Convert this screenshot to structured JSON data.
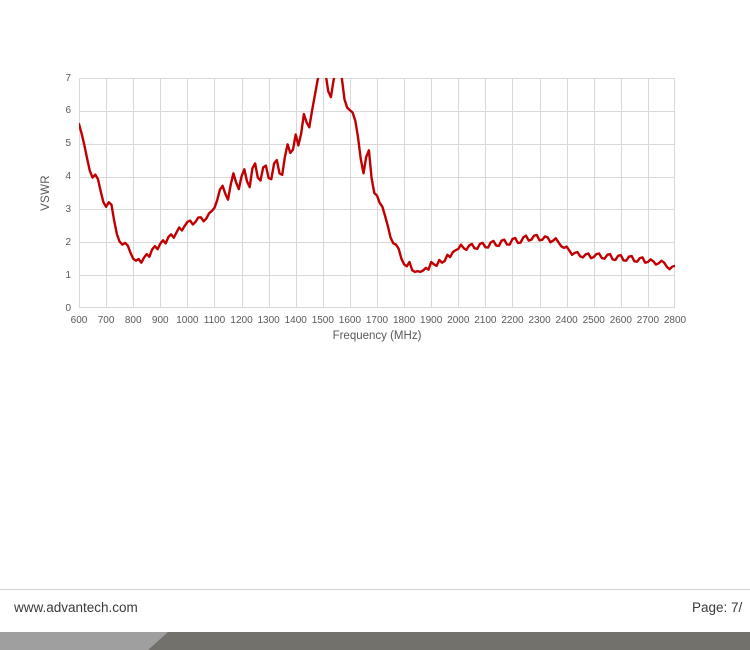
{
  "chart_data": {
    "type": "line",
    "title": "",
    "xlabel": "Frequency (MHz)",
    "ylabel": "VSWR",
    "xlim": [
      600,
      2800
    ],
    "ylim": [
      0,
      7
    ],
    "grid": true,
    "legend": "none",
    "x_ticks": [
      600,
      700,
      800,
      900,
      1000,
      1100,
      1200,
      1300,
      1400,
      1500,
      1600,
      1700,
      1800,
      1900,
      2000,
      2100,
      2200,
      2300,
      2400,
      2500,
      2600,
      2700,
      2800
    ],
    "y_ticks": [
      0,
      1,
      2,
      3,
      4,
      5,
      6,
      7
    ],
    "line_color": "#C00000",
    "grid_color": "#D9D9D9",
    "axis_text_color": "#595959",
    "clip_above_ymax": true,
    "series": [
      {
        "name": "VSWR",
        "x_start": 600,
        "x_step": 10,
        "values": [
          5.6,
          5.3,
          4.95,
          4.55,
          4.18,
          3.97,
          4.06,
          3.92,
          3.55,
          3.22,
          3.08,
          3.22,
          3.14,
          2.65,
          2.25,
          2.02,
          1.93,
          1.98,
          1.9,
          1.68,
          1.5,
          1.44,
          1.49,
          1.38,
          1.53,
          1.64,
          1.56,
          1.78,
          1.88,
          1.79,
          1.96,
          2.06,
          1.97,
          2.16,
          2.24,
          2.14,
          2.3,
          2.45,
          2.36,
          2.5,
          2.62,
          2.66,
          2.54,
          2.62,
          2.75,
          2.76,
          2.64,
          2.72,
          2.88,
          2.95,
          3.05,
          3.28,
          3.6,
          3.72,
          3.48,
          3.3,
          3.75,
          4.1,
          3.82,
          3.62,
          4.0,
          4.22,
          3.86,
          3.68,
          4.25,
          4.4,
          3.97,
          3.88,
          4.28,
          4.33,
          3.96,
          3.92,
          4.4,
          4.5,
          4.1,
          4.05,
          4.6,
          4.98,
          4.72,
          4.82,
          5.28,
          4.95,
          5.3,
          5.9,
          5.65,
          5.5,
          6.0,
          6.45,
          6.9,
          7.3,
          7.45,
          7.15,
          6.6,
          6.42,
          6.95,
          7.4,
          7.45,
          7.0,
          6.35,
          6.1,
          6.02,
          5.95,
          5.7,
          5.2,
          4.55,
          4.1,
          4.6,
          4.8,
          3.95,
          3.5,
          3.42,
          3.2,
          3.08,
          2.8,
          2.5,
          2.15,
          1.97,
          1.93,
          1.8,
          1.5,
          1.33,
          1.27,
          1.4,
          1.15,
          1.1,
          1.12,
          1.1,
          1.14,
          1.22,
          1.17,
          1.4,
          1.33,
          1.28,
          1.46,
          1.38,
          1.43,
          1.62,
          1.55,
          1.7,
          1.76,
          1.8,
          1.93,
          1.82,
          1.77,
          1.9,
          1.95,
          1.82,
          1.8,
          1.95,
          1.98,
          1.85,
          1.84,
          2.0,
          2.04,
          1.9,
          1.89,
          2.05,
          2.08,
          1.93,
          1.93,
          2.1,
          2.13,
          1.98,
          1.99,
          2.15,
          2.2,
          2.05,
          2.08,
          2.2,
          2.22,
          2.06,
          2.08,
          2.18,
          2.15,
          2.0,
          2.05,
          2.12,
          2.0,
          1.88,
          1.83,
          1.87,
          1.75,
          1.62,
          1.68,
          1.7,
          1.57,
          1.54,
          1.63,
          1.66,
          1.52,
          1.55,
          1.64,
          1.66,
          1.52,
          1.5,
          1.62,
          1.64,
          1.48,
          1.46,
          1.59,
          1.61,
          1.45,
          1.44,
          1.56,
          1.58,
          1.42,
          1.41,
          1.52,
          1.54,
          1.38,
          1.4,
          1.48,
          1.42,
          1.32,
          1.36,
          1.44,
          1.38,
          1.25,
          1.18,
          1.26,
          1.28
        ]
      }
    ]
  },
  "footer": {
    "website": "www.advantech.com",
    "page_label": "Page: 7/"
  },
  "colors": {
    "line": "#C00000",
    "grid": "#D9D9D9",
    "axis_text": "#595959",
    "footer_text": "#3a3a3a",
    "footer_rule": "#d2d2d2",
    "bar_left": "#9f9f9f",
    "bar_right": "#73716c"
  }
}
